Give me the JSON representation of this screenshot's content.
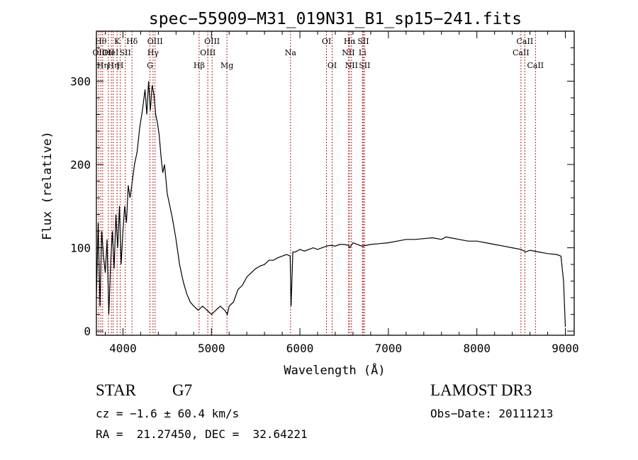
{
  "chart_data": {
    "type": "line",
    "title": "spec−55909−M31_019N31_B1_sp15−241.fits",
    "xlabel": "Wavelength (Å)",
    "ylabel": "Flux (relative)",
    "xlim": [
      3700,
      9100
    ],
    "ylim": [
      -5,
      360
    ],
    "xticks": [
      4000,
      5000,
      6000,
      7000,
      8000,
      9000
    ],
    "yticks": [
      0,
      100,
      200,
      300
    ],
    "grid": false,
    "line_color": "#000000",
    "marker_color": "#b22222",
    "series": [
      {
        "x": [
          3700,
          3720,
          3740,
          3760,
          3780,
          3800,
          3820,
          3840,
          3860,
          3880,
          3900,
          3920,
          3940,
          3960,
          3980,
          4000,
          4020,
          4040,
          4060,
          4080,
          4100,
          4130,
          4160,
          4190,
          4220,
          4250,
          4270,
          4290,
          4310,
          4330,
          4350,
          4370,
          4390,
          4410,
          4430,
          4450,
          4470,
          4500,
          4530,
          4560,
          4600,
          4640,
          4680,
          4720,
          4760,
          4800,
          4850,
          4900,
          4950,
          5000,
          5050,
          5100,
          5150,
          5180,
          5200,
          5250,
          5300,
          5350,
          5400,
          5450,
          5500,
          5550,
          5600,
          5650,
          5700,
          5750,
          5800,
          5850,
          5890,
          5900,
          5920,
          5950,
          6000,
          6050,
          6100,
          6150,
          6200,
          6250,
          6300,
          6350,
          6400,
          6450,
          6500,
          6550,
          6563,
          6600,
          6650,
          6700,
          6750,
          6800,
          6900,
          7000,
          7100,
          7200,
          7300,
          7400,
          7500,
          7600,
          7650,
          7700,
          7800,
          7900,
          8000,
          8100,
          8200,
          8300,
          8400,
          8500,
          8550,
          8600,
          8700,
          8800,
          8900,
          8950,
          8980,
          9000
        ],
        "y": [
          40,
          130,
          30,
          120,
          90,
          70,
          110,
          20,
          80,
          120,
          75,
          140,
          100,
          150,
          80,
          120,
          150,
          130,
          175,
          160,
          175,
          200,
          215,
          245,
          265,
          290,
          260,
          300,
          265,
          295,
          285,
          260,
          250,
          235,
          210,
          190,
          200,
          165,
          150,
          135,
          110,
          80,
          60,
          45,
          35,
          30,
          25,
          30,
          25,
          20,
          25,
          30,
          25,
          20,
          30,
          35,
          50,
          55,
          65,
          70,
          75,
          78,
          80,
          85,
          85,
          88,
          90,
          92,
          90,
          30,
          95,
          95,
          98,
          96,
          98,
          100,
          98,
          100,
          102,
          103,
          102,
          104,
          104,
          103,
          100,
          106,
          104,
          102,
          103,
          104,
          105,
          106,
          108,
          110,
          110,
          111,
          112,
          110,
          113,
          112,
          110,
          108,
          108,
          106,
          104,
          102,
          100,
          98,
          95,
          97,
          95,
          93,
          92,
          90,
          60,
          5
        ]
      }
    ],
    "line_markers": [
      {
        "x": 3726,
        "label": "OII",
        "row": 2
      },
      {
        "x": 3750,
        "label": "Hθ",
        "row": 1
      },
      {
        "x": 3771,
        "label": "Hη",
        "row": 3
      },
      {
        "x": 3835,
        "label": "OII",
        "row": 2
      },
      {
        "x": 3869,
        "label": "HeI",
        "row": 2
      },
      {
        "x": 3889,
        "label": "Hη",
        "row": 3
      },
      {
        "x": 3934,
        "label": "K",
        "row": 1
      },
      {
        "x": 3969,
        "label": "H",
        "row": 3
      },
      {
        "x": 4026,
        "label": "SII",
        "row": 2
      },
      {
        "x": 4102,
        "label": "Hδ",
        "row": 1
      },
      {
        "x": 4305,
        "label": "G",
        "row": 3
      },
      {
        "x": 4340,
        "label": "Hγ",
        "row": 2
      },
      {
        "x": 4363,
        "label": "OIII",
        "row": 1
      },
      {
        "x": 4861,
        "label": "Hβ",
        "row": 3
      },
      {
        "x": 4959,
        "label": "OIII",
        "row": 2
      },
      {
        "x": 5007,
        "label": "OIII",
        "row": 1
      },
      {
        "x": 5175,
        "label": "Mg",
        "row": 3
      },
      {
        "x": 5894,
        "label": "Na",
        "row": 2
      },
      {
        "x": 6300,
        "label": "OI",
        "row": 1
      },
      {
        "x": 6364,
        "label": "OI",
        "row": 3
      },
      {
        "x": 6548,
        "label": "NII",
        "row": 2
      },
      {
        "x": 6563,
        "label": "Hα",
        "row": 1
      },
      {
        "x": 6583,
        "label": "NII",
        "row": 3
      },
      {
        "x": 6707,
        "label": "Li",
        "row": 2
      },
      {
        "x": 6716,
        "label": "SII",
        "row": 1
      },
      {
        "x": 6731,
        "label": "SII",
        "row": 3
      },
      {
        "x": 8498,
        "label": "CaII",
        "row": 2
      },
      {
        "x": 8542,
        "label": "CaII",
        "row": 1
      },
      {
        "x": 8662,
        "label": "CaII",
        "row": 3
      }
    ]
  },
  "info": {
    "class": "STAR",
    "subclass": "G7",
    "survey": "LAMOST DR3",
    "redshift": "cz = −1.6 ± 60.4 km/s",
    "obs_date": "Obs−Date: 20111213",
    "coords": "RA =  21.27450, DEC =  32.64221"
  }
}
